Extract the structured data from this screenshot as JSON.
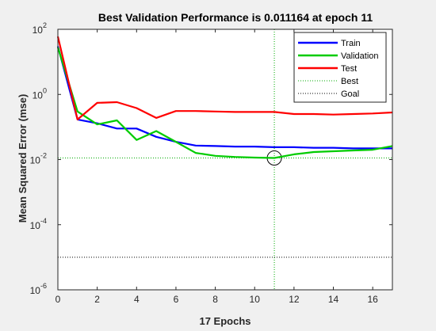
{
  "chart_data": {
    "type": "line",
    "title": "Best Validation Performance is 0.011164 at epoch 11",
    "xlabel": "17 Epochs",
    "ylabel": "Mean Squared Error  (mse)",
    "xlim": [
      0,
      17
    ],
    "ylim": [
      1e-06,
      100
    ],
    "yscale": "log",
    "x_ticks": [
      0,
      2,
      4,
      6,
      8,
      10,
      12,
      14,
      16
    ],
    "y_ticks": [
      {
        "value": 1e-06,
        "base": "10",
        "exp": "-6"
      },
      {
        "value": 0.0001,
        "base": "10",
        "exp": "-4"
      },
      {
        "value": 0.01,
        "base": "10",
        "exp": "-2"
      },
      {
        "value": 1,
        "base": "10",
        "exp": "0"
      },
      {
        "value": 100,
        "base": "10",
        "exp": "2"
      }
    ],
    "grid": false,
    "legend_position": "top-right",
    "x": [
      0,
      1,
      2,
      3,
      4,
      5,
      6,
      7,
      8,
      9,
      10,
      11,
      12,
      13,
      14,
      15,
      16,
      17
    ],
    "series": [
      {
        "name": "Train",
        "color": "#0000ff",
        "style": "solid",
        "values": [
          30,
          0.17,
          0.13,
          0.09,
          0.09,
          0.05,
          0.035,
          0.027,
          0.026,
          0.025,
          0.025,
          0.024,
          0.024,
          0.023,
          0.023,
          0.022,
          0.022,
          0.022
        ]
      },
      {
        "name": "Validation",
        "color": "#00cc00",
        "style": "solid",
        "values": [
          28,
          0.3,
          0.12,
          0.16,
          0.04,
          0.075,
          0.035,
          0.016,
          0.013,
          0.012,
          0.0115,
          0.011164,
          0.0145,
          0.017,
          0.018,
          0.019,
          0.02,
          0.026
        ]
      },
      {
        "name": "Test",
        "color": "#ff0000",
        "style": "solid",
        "values": [
          60,
          0.17,
          0.55,
          0.58,
          0.38,
          0.19,
          0.31,
          0.31,
          0.3,
          0.29,
          0.29,
          0.29,
          0.25,
          0.25,
          0.24,
          0.25,
          0.26,
          0.28
        ]
      },
      {
        "name": "Best",
        "color": "#00aa00",
        "style": "dotted",
        "kind": "best-marker",
        "x_value": 11,
        "y_value": 0.011164
      },
      {
        "name": "Goal",
        "color": "#000000",
        "style": "dotted",
        "kind": "hline",
        "y_value": 1e-05
      }
    ]
  }
}
